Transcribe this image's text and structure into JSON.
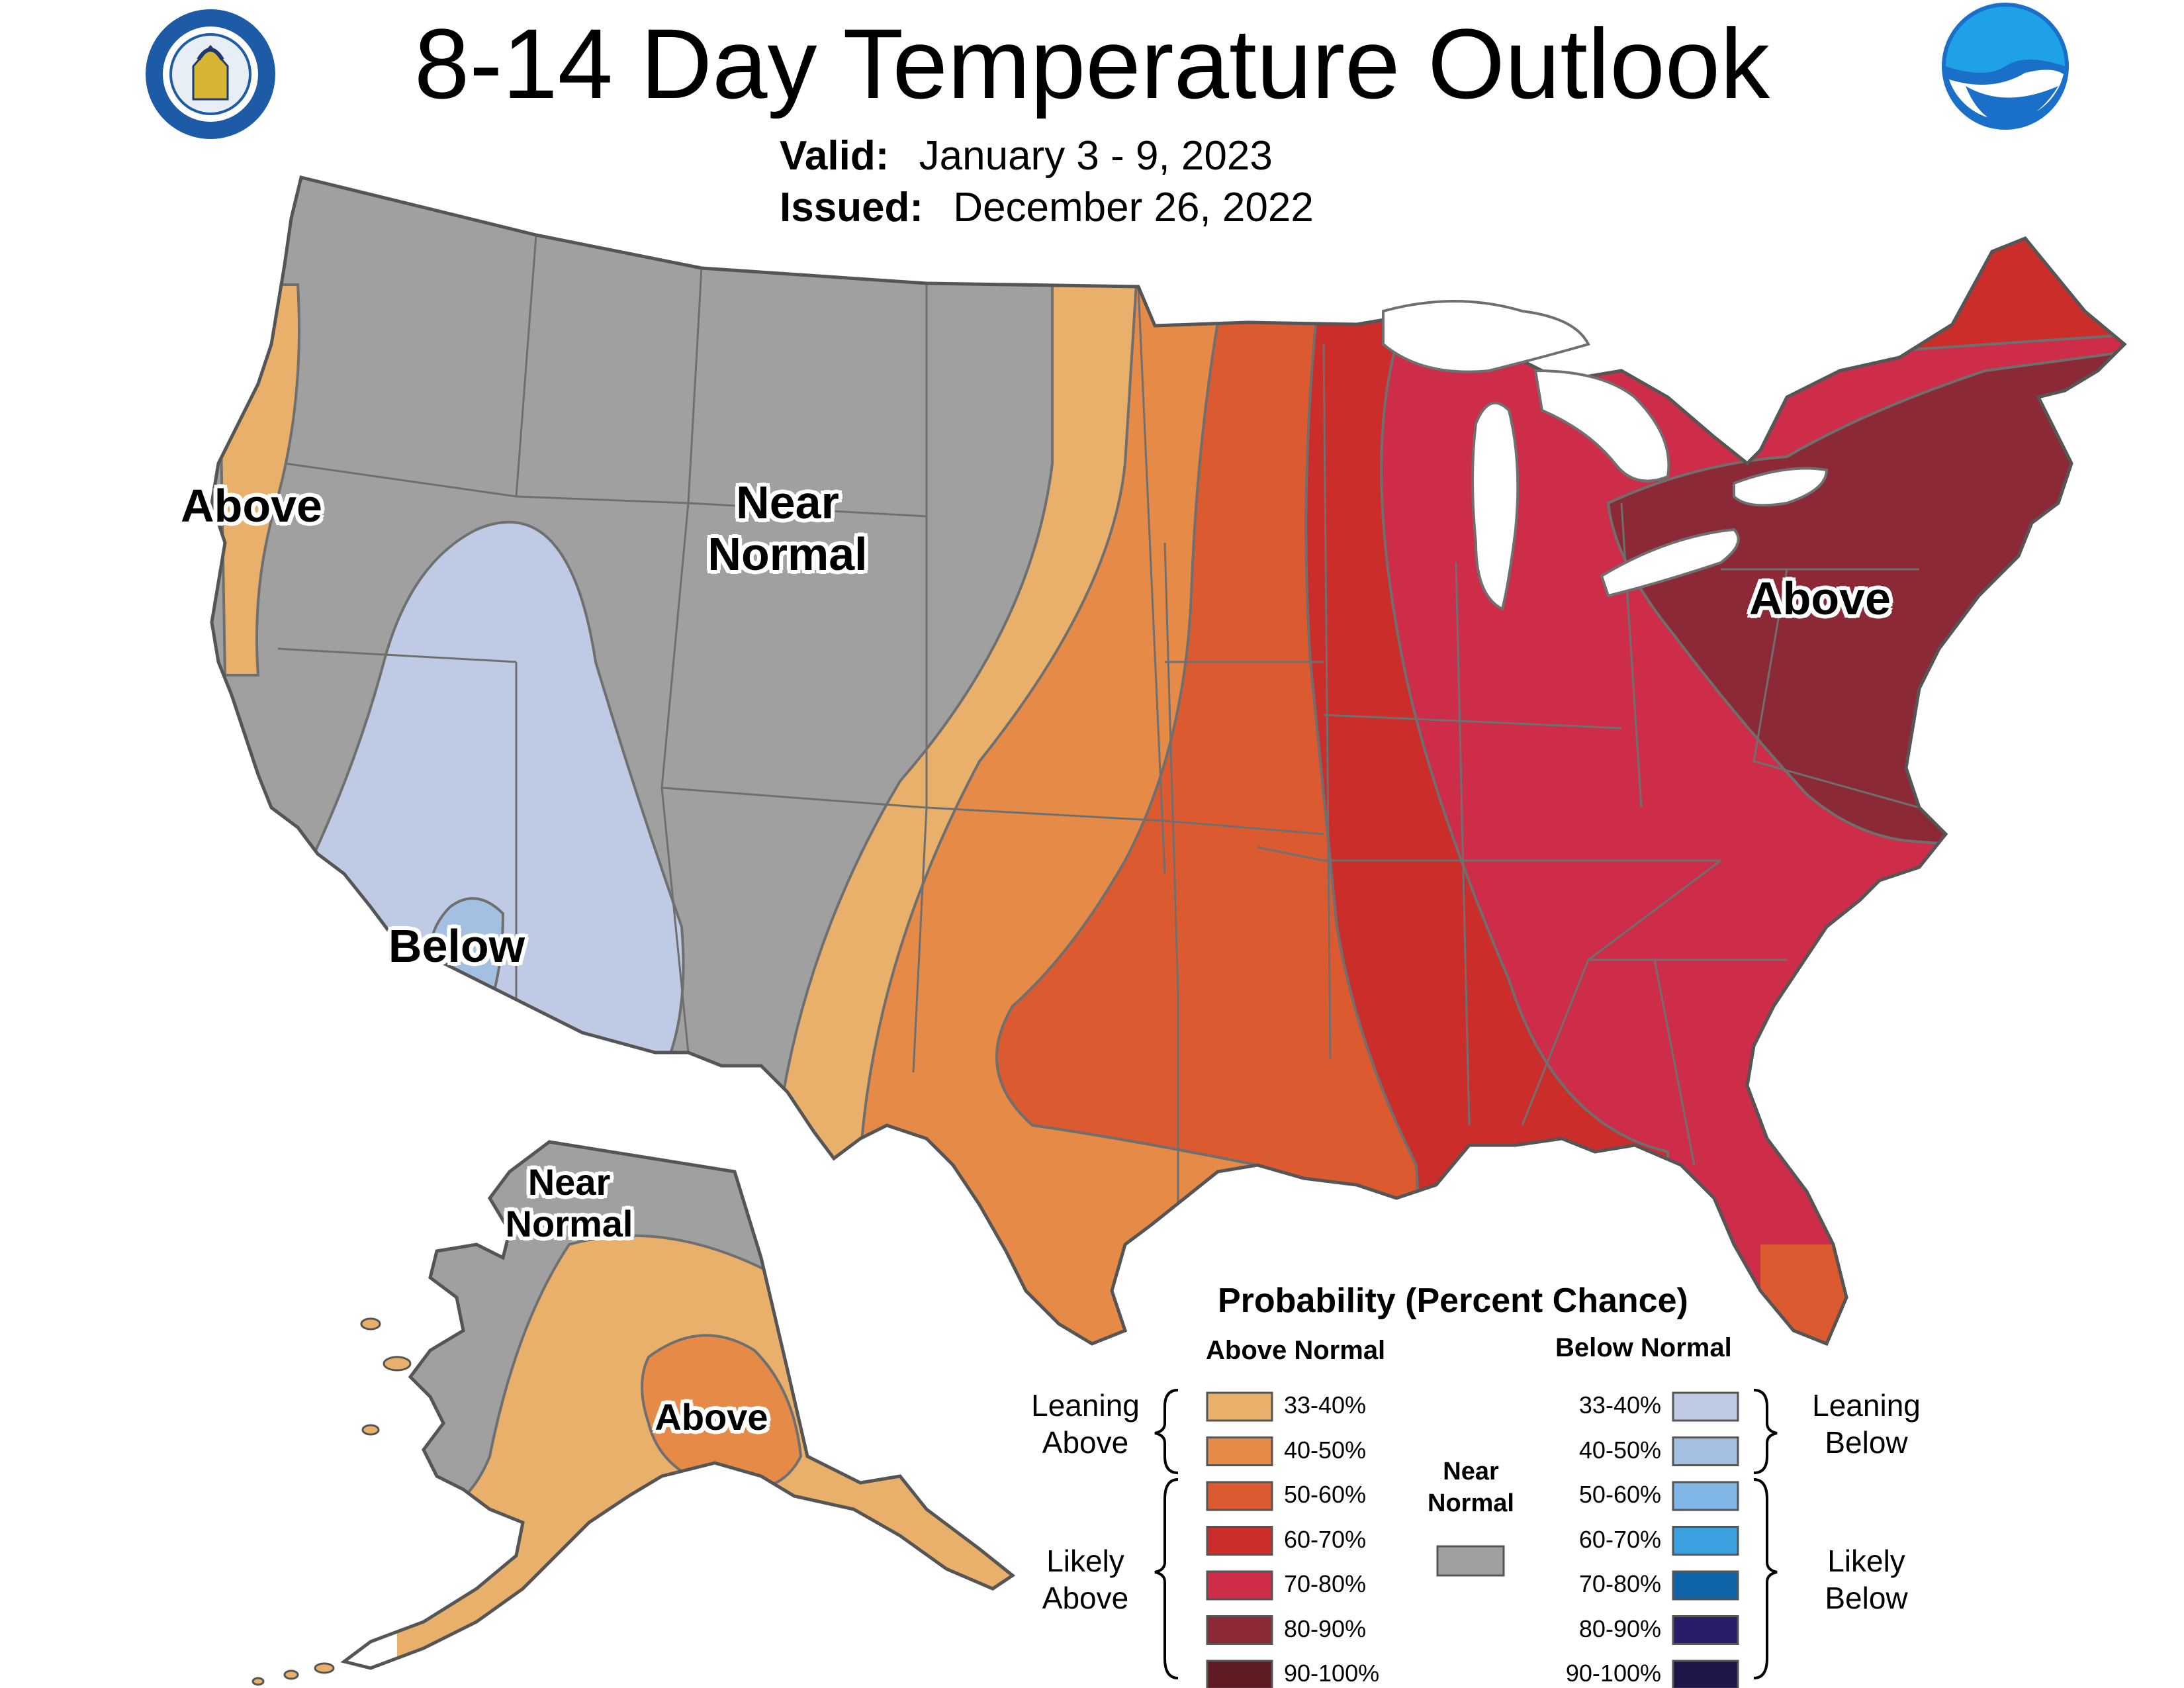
{
  "title": "8-14 Day Temperature Outlook",
  "valid_label": "Valid:",
  "valid_value": "January 3 - 9, 2023",
  "issued_label": "Issued:",
  "issued_value": "December 26, 2022",
  "logos": {
    "left": "department-of-commerce-seal",
    "right": "noaa-logo"
  },
  "map_labels": {
    "west_coast": "Above",
    "central": "Near\nNormal",
    "southwest": "Below",
    "east": "Above",
    "alaska_north": "Near\nNormal",
    "alaska_south": "Above"
  },
  "legend": {
    "title": "Probability (Percent Chance)",
    "above_header": "Above Normal",
    "below_header": "Below Normal",
    "leaning_above": "Leaning\nAbove",
    "likely_above": "Likely\nAbove",
    "leaning_below": "Leaning\nBelow",
    "likely_below": "Likely\nBelow",
    "near_normal": "Near\nNormal",
    "near_normal_color": "#a0a0a0",
    "above": [
      {
        "range": "33-40%",
        "color": "#e8b06a"
      },
      {
        "range": "40-50%",
        "color": "#e68a48"
      },
      {
        "range": "50-60%",
        "color": "#dc5a30"
      },
      {
        "range": "60-70%",
        "color": "#cb2d2a"
      },
      {
        "range": "70-80%",
        "color": "#cd2d48"
      },
      {
        "range": "80-90%",
        "color": "#8b2a36"
      },
      {
        "range": "90-100%",
        "color": "#5e1c22"
      }
    ],
    "below": [
      {
        "range": "33-40%",
        "color": "#bfcbe4"
      },
      {
        "range": "40-50%",
        "color": "#a3c0e3"
      },
      {
        "range": "50-60%",
        "color": "#7fb6e5"
      },
      {
        "range": "60-70%",
        "color": "#3ba0de"
      },
      {
        "range": "70-80%",
        "color": "#0f64a8"
      },
      {
        "range": "80-90%",
        "color": "#2b1c6b"
      },
      {
        "range": "90-100%",
        "color": "#1c1748"
      }
    ]
  }
}
